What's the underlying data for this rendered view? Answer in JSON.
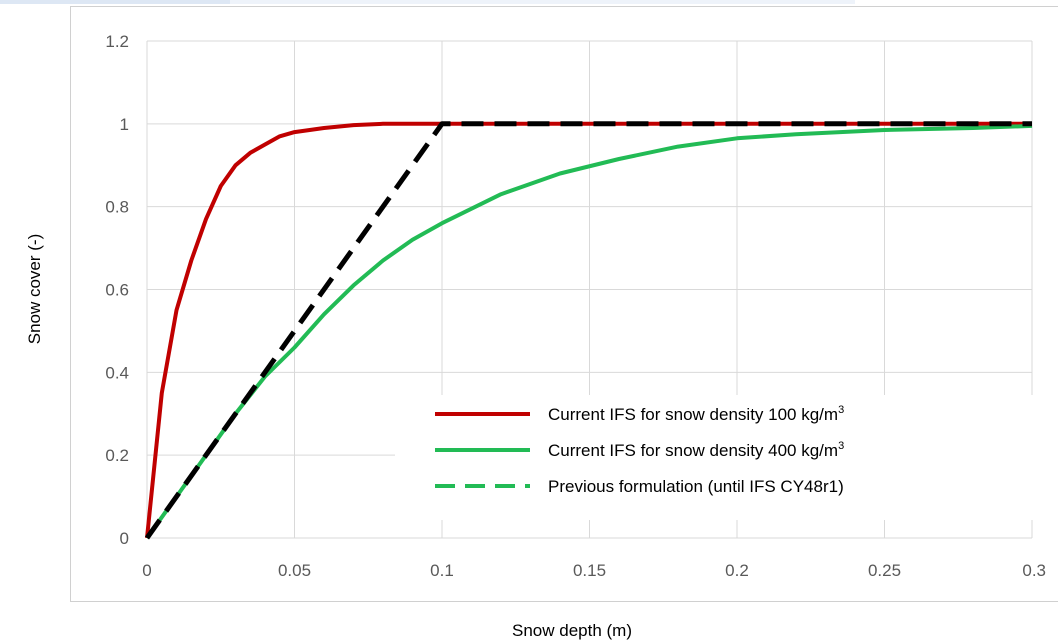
{
  "chart_data": {
    "type": "line",
    "xlabel": "Snow depth (m)",
    "ylabel": "Snow cover (-)",
    "xlim": [
      0,
      0.3
    ],
    "ylim": [
      0,
      1.2
    ],
    "x_ticks": [
      "0",
      "0.05",
      "0.1",
      "0.15",
      "0.2",
      "0.25",
      "0.3"
    ],
    "x_tick_values": [
      0,
      0.05,
      0.1,
      0.15,
      0.2,
      0.25,
      0.3
    ],
    "y_ticks": [
      "0",
      "0.2",
      "0.4",
      "0.6",
      "0.8",
      "1",
      "1.2"
    ],
    "y_tick_values": [
      0,
      0.2,
      0.4,
      0.6,
      0.8,
      1,
      1.2
    ],
    "grid": "vertical-and-horizontal",
    "legend_placement": "bottom-right",
    "series": [
      {
        "name": "Current IFS for snow density 100 kg/m",
        "name_superscript": "3",
        "color": "#c00000",
        "style": "solid",
        "x": [
          0,
          0.005,
          0.01,
          0.015,
          0.02,
          0.025,
          0.03,
          0.035,
          0.04,
          0.045,
          0.05,
          0.06,
          0.07,
          0.08,
          0.1,
          0.15,
          0.2,
          0.25,
          0.3
        ],
        "y": [
          0,
          0.35,
          0.55,
          0.67,
          0.77,
          0.85,
          0.9,
          0.93,
          0.95,
          0.97,
          0.98,
          0.99,
          0.997,
          1,
          1,
          1,
          1,
          1,
          1
        ]
      },
      {
        "name": "Current IFS for snow density 400 kg/m",
        "name_superscript": "3",
        "color": "#22bb55",
        "style": "solid",
        "x": [
          0,
          0.01,
          0.02,
          0.03,
          0.04,
          0.05,
          0.06,
          0.07,
          0.08,
          0.09,
          0.1,
          0.12,
          0.14,
          0.16,
          0.18,
          0.2,
          0.22,
          0.25,
          0.28,
          0.3
        ],
        "y": [
          0,
          0.1,
          0.2,
          0.3,
          0.39,
          0.46,
          0.54,
          0.61,
          0.67,
          0.72,
          0.76,
          0.83,
          0.88,
          0.915,
          0.945,
          0.965,
          0.975,
          0.985,
          0.99,
          0.995
        ]
      },
      {
        "name": "Previous formulation (until IFS CY48r1)",
        "color": "#000000",
        "legend_color": "#22bb55",
        "style": "dashed",
        "x": [
          0,
          0.1,
          0.3
        ],
        "y": [
          0,
          1,
          1
        ]
      }
    ]
  }
}
